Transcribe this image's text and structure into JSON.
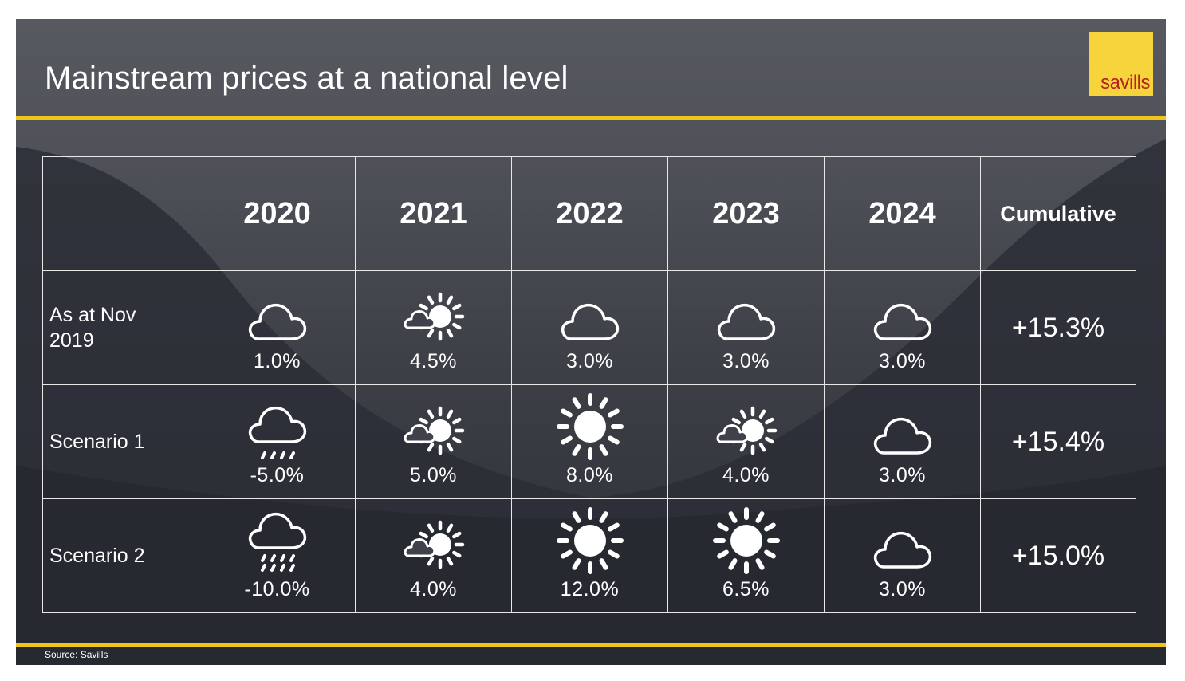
{
  "slide": {
    "title": "Mainstream prices at a national level",
    "logo_text": "savills",
    "source": "Source: Savills",
    "accent_color": "#f0c419",
    "logo_color": "#f7d33c"
  },
  "table": {
    "columns": [
      "2020",
      "2021",
      "2022",
      "2023",
      "2024",
      "Cumulative"
    ],
    "rows": [
      {
        "label": "As at Nov 2019",
        "cells": [
          {
            "icon": "cloud",
            "value": "1.0%"
          },
          {
            "icon": "sun-cloud",
            "value": "4.5%"
          },
          {
            "icon": "cloud",
            "value": "3.0%"
          },
          {
            "icon": "cloud",
            "value": "3.0%"
          },
          {
            "icon": "cloud",
            "value": "3.0%"
          }
        ],
        "cumulative": "+15.3%"
      },
      {
        "label": "Scenario 1",
        "cells": [
          {
            "icon": "cloud-rain-light",
            "value": "-5.0%"
          },
          {
            "icon": "sun-cloud",
            "value": "5.0%"
          },
          {
            "icon": "sun",
            "value": "8.0%"
          },
          {
            "icon": "sun-cloud",
            "value": "4.0%"
          },
          {
            "icon": "cloud",
            "value": "3.0%"
          }
        ],
        "cumulative": "+15.4%"
      },
      {
        "label": "Scenario 2",
        "cells": [
          {
            "icon": "cloud-rain-heavy",
            "value": "-10.0%"
          },
          {
            "icon": "sun-cloud",
            "value": "4.0%"
          },
          {
            "icon": "sun",
            "value": "12.0%"
          },
          {
            "icon": "sun",
            "value": "6.5%"
          },
          {
            "icon": "cloud",
            "value": "3.0%"
          }
        ],
        "cumulative": "+15.0%"
      }
    ]
  }
}
